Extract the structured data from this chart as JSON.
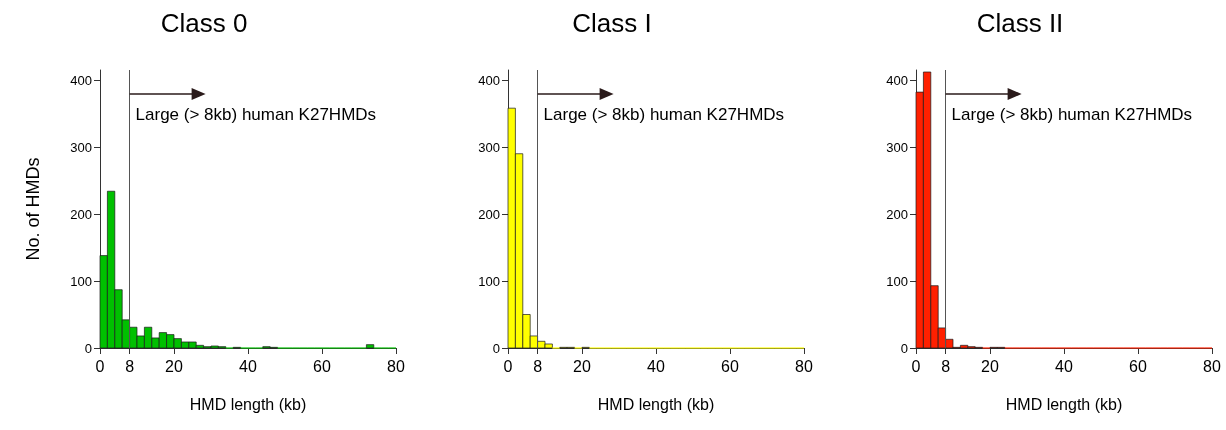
{
  "chart_data": [
    {
      "type": "histogram",
      "title": "Class 0",
      "xlabel": "HMD length (kb)",
      "ylabel": "No. of HMDs",
      "color": "#00c000",
      "bins": [
        0,
        2,
        4,
        6,
        8,
        10,
        12,
        14,
        16,
        18,
        20,
        22,
        24,
        26,
        28,
        30,
        32,
        34,
        36,
        38,
        40,
        42,
        44,
        46,
        48,
        50,
        52,
        54,
        56,
        58,
        60,
        62,
        64,
        66,
        68,
        70,
        72,
        74,
        76,
        78,
        80
      ],
      "values": [
        138,
        234,
        87,
        42,
        31,
        18,
        31,
        15,
        23,
        20,
        14,
        9,
        9,
        4,
        2,
        3,
        2,
        0,
        1,
        0,
        0,
        0,
        2,
        1,
        0,
        0,
        0,
        0,
        0,
        0,
        0,
        0,
        0,
        0,
        0,
        0,
        5,
        0,
        0,
        0
      ],
      "xlim": [
        0,
        80
      ],
      "xticks": [
        0,
        8,
        20,
        40,
        60,
        80
      ],
      "ylim": [
        0,
        415
      ],
      "yticks": [
        0,
        100,
        200,
        300,
        400
      ],
      "grid": false,
      "ref_lines": [
        {
          "axis": "x",
          "value": 8
        }
      ],
      "annotations": [
        "Large (> 8kb) human K27HMDs"
      ]
    },
    {
      "type": "histogram",
      "title": "Class I",
      "xlabel": "HMD length (kb)",
      "color": "#ffff00",
      "bins": [
        0,
        2,
        4,
        6,
        8,
        10,
        12,
        14,
        16,
        18,
        20,
        22,
        24,
        26,
        28,
        30,
        32,
        34,
        36,
        38,
        40,
        42,
        44,
        46,
        48,
        50,
        52,
        54,
        56,
        58,
        60,
        62,
        64,
        66,
        68,
        70,
        72,
        74,
        76,
        78,
        80
      ],
      "values": [
        358,
        290,
        50,
        18,
        10,
        6,
        0,
        1,
        1,
        0,
        1,
        0,
        0,
        0,
        0,
        0,
        0,
        0,
        0,
        0,
        0,
        0,
        0,
        0,
        0,
        0,
        0,
        0,
        0,
        0,
        0,
        0,
        0,
        0,
        0,
        0,
        0,
        0,
        0,
        0
      ],
      "xlim": [
        0,
        80
      ],
      "xticks": [
        0,
        8,
        20,
        40,
        60,
        80
      ],
      "ylim": [
        0,
        415
      ],
      "yticks": [
        0,
        100,
        200,
        300,
        400
      ],
      "grid": false,
      "ref_lines": [
        {
          "axis": "x",
          "value": 8
        }
      ],
      "annotations": [
        "Large (> 8kb) human K27HMDs"
      ]
    },
    {
      "type": "histogram",
      "title": "Class II",
      "xlabel": "HMD length (kb)",
      "color": "#ff2000",
      "bins": [
        0,
        2,
        4,
        6,
        8,
        10,
        12,
        14,
        16,
        18,
        20,
        22,
        24,
        26,
        28,
        30,
        32,
        34,
        36,
        38,
        40,
        42,
        44,
        46,
        48,
        50,
        52,
        54,
        56,
        58,
        60,
        62,
        64,
        66,
        68,
        70,
        72,
        74,
        76,
        78,
        80
      ],
      "values": [
        382,
        412,
        93,
        30,
        13,
        1,
        4,
        2,
        1,
        0,
        1,
        1,
        0,
        0,
        0,
        0,
        0,
        0,
        0,
        0,
        0,
        0,
        0,
        0,
        0,
        0,
        0,
        0,
        0,
        0,
        0,
        0,
        0,
        0,
        0,
        0,
        0,
        0,
        0,
        0
      ],
      "xlim": [
        0,
        80
      ],
      "xticks": [
        0,
        8,
        20,
        40,
        60,
        80
      ],
      "ylim": [
        0,
        415
      ],
      "yticks": [
        0,
        100,
        200,
        300,
        400
      ],
      "grid": false,
      "ref_lines": [
        {
          "axis": "x",
          "value": 8
        }
      ],
      "annotations": [
        "Large (> 8kb) human K27HMDs"
      ]
    }
  ]
}
